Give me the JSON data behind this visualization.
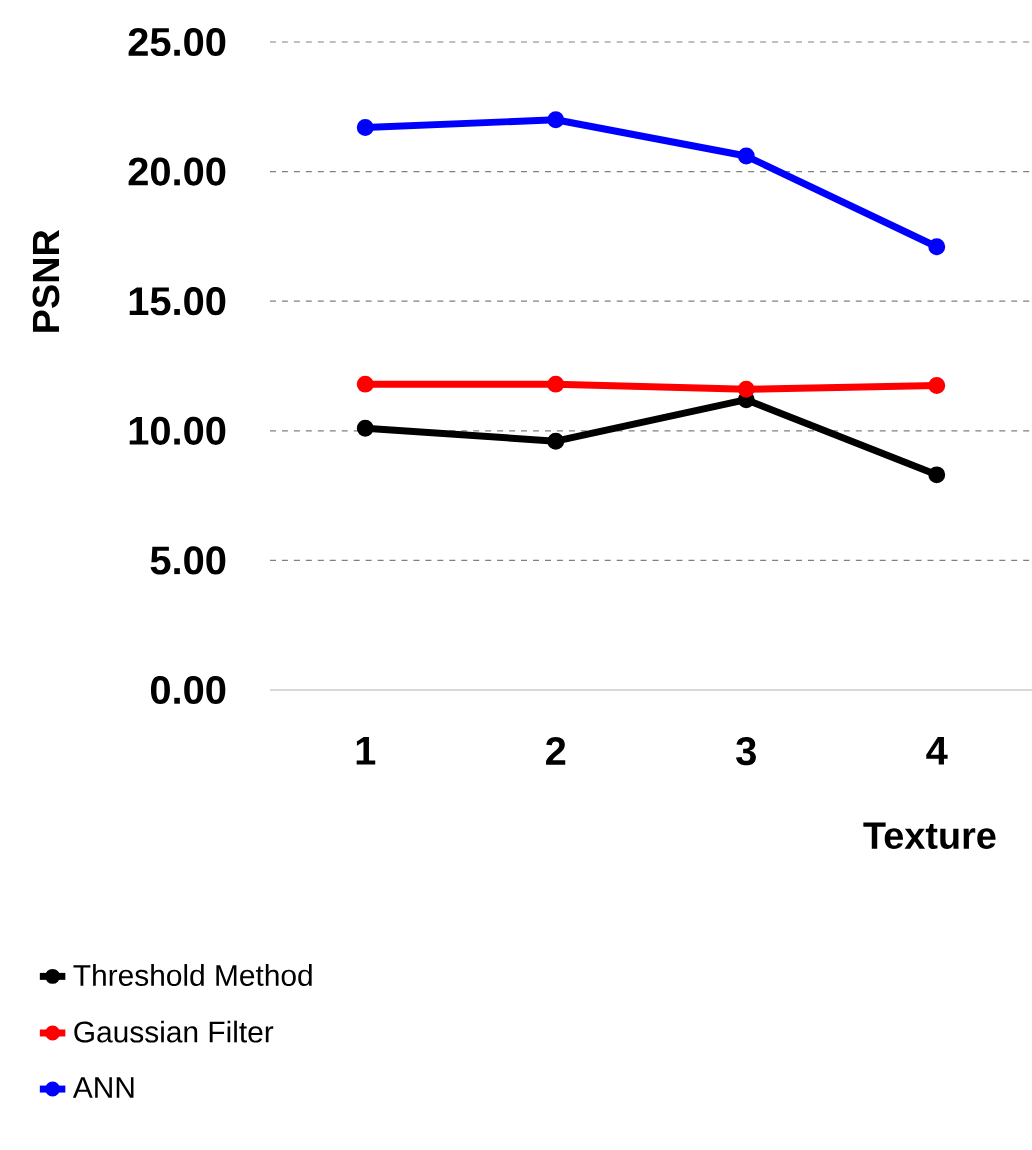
{
  "chart_data": {
    "type": "line",
    "xlabel": "Texture",
    "ylabel": "PSNR",
    "categories": [
      "1",
      "2",
      "3",
      "4"
    ],
    "series": [
      {
        "name": "Threshold Method",
        "color": "#000000",
        "values": [
          10.1,
          9.6,
          11.2,
          8.3
        ]
      },
      {
        "name": "Gaussian Filter",
        "color": "#ff0000",
        "values": [
          11.8,
          11.8,
          11.6,
          11.75
        ]
      },
      {
        "name": "ANN",
        "color": "#0000ff",
        "values": [
          21.7,
          22.0,
          20.6,
          17.1
        ]
      }
    ],
    "ylim": [
      0,
      25
    ],
    "yticks": [
      {
        "value": 0,
        "label": "0.00"
      },
      {
        "value": 5,
        "label": "5.00"
      },
      {
        "value": 10,
        "label": "10.00"
      },
      {
        "value": 15,
        "label": "15.00"
      },
      {
        "value": 20,
        "label": "20.00"
      },
      {
        "value": 25,
        "label": "25.00"
      }
    ],
    "grid": "y",
    "legend": "bottom",
    "marker": "circle",
    "line_style": "solid"
  }
}
